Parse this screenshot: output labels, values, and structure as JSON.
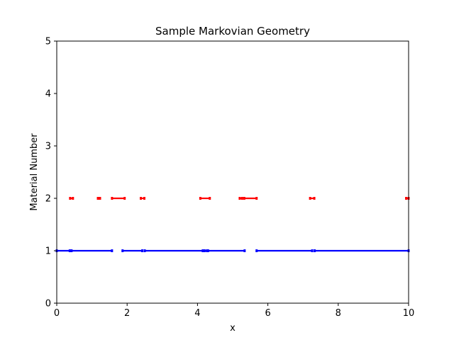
{
  "chart_data": {
    "type": "scatter",
    "title": "Sample Markovian Geometry",
    "xlabel": "x",
    "ylabel": "Material Number",
    "xlim": [
      0,
      10
    ],
    "ylim": [
      0,
      5
    ],
    "xticks": [
      0,
      2,
      4,
      6,
      8,
      10
    ],
    "yticks": [
      0,
      1,
      2,
      3,
      4,
      5
    ],
    "grid": false,
    "series": [
      {
        "color": "#0000ff",
        "y": 1,
        "segments": [
          [
            0.0,
            0.37
          ],
          [
            0.42,
            1.57
          ],
          [
            1.87,
            2.43
          ],
          [
            2.5,
            4.15
          ],
          [
            4.2,
            4.27
          ],
          [
            4.3,
            5.34
          ],
          [
            5.68,
            7.26
          ],
          [
            7.33,
            10.0
          ]
        ]
      },
      {
        "color": "#ff0000",
        "y": 2,
        "segments": [
          [
            0.38,
            0.46
          ],
          [
            1.17,
            1.23
          ],
          [
            1.57,
            1.93
          ],
          [
            2.39,
            2.49
          ],
          [
            4.08,
            4.35
          ],
          [
            5.2,
            5.27
          ],
          [
            5.33,
            5.68
          ],
          [
            7.2,
            7.32
          ],
          [
            9.93,
            10.0
          ]
        ]
      }
    ]
  }
}
